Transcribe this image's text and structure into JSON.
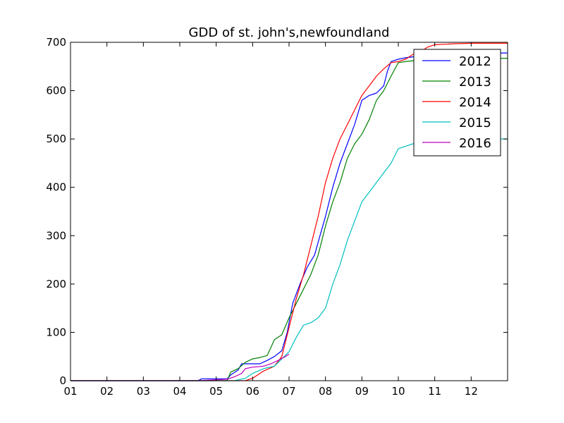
{
  "chart_data": {
    "type": "line",
    "title": "GDD of st. john's,newfoundland",
    "xlabel": "",
    "ylabel": "",
    "x_ticks": [
      "01",
      "02",
      "03",
      "04",
      "05",
      "06",
      "07",
      "08",
      "09",
      "10",
      "11",
      "12"
    ],
    "x_unit": "month",
    "xlim": [
      1,
      13
    ],
    "ylim": [
      0,
      700
    ],
    "y_ticks": [
      0,
      100,
      200,
      300,
      400,
      500,
      600,
      700
    ],
    "grid": false,
    "legend_position": "upper-right",
    "series": [
      {
        "name": "2012",
        "color": "#0000ff",
        "x": [
          1.0,
          4.5,
          4.6,
          5.3,
          5.4,
          5.6,
          5.7,
          6.2,
          6.4,
          6.6,
          6.8,
          6.95,
          7.1,
          7.3,
          7.5,
          7.7,
          7.85,
          8.0,
          8.2,
          8.4,
          8.6,
          8.8,
          9.0,
          9.2,
          9.4,
          9.6,
          9.7,
          9.8,
          10.0,
          10.2,
          10.4,
          10.6,
          11.0,
          12.0,
          13.0
        ],
        "y": [
          0,
          0,
          4,
          4,
          12,
          22,
          35,
          35,
          42,
          50,
          62,
          100,
          160,
          200,
          235,
          260,
          300,
          340,
          400,
          450,
          490,
          530,
          580,
          590,
          595,
          610,
          640,
          660,
          665,
          668,
          670,
          672,
          675,
          677,
          678
        ]
      },
      {
        "name": "2013",
        "color": "#008000",
        "x": [
          1.0,
          5.3,
          5.4,
          5.6,
          5.8,
          6.0,
          6.2,
          6.4,
          6.6,
          6.8,
          7.0,
          7.2,
          7.4,
          7.6,
          7.8,
          8.0,
          8.2,
          8.4,
          8.6,
          8.8,
          9.0,
          9.2,
          9.4,
          9.6,
          9.8,
          10.0,
          10.2,
          10.4,
          10.6,
          11.0,
          12.0,
          13.0
        ],
        "y": [
          0,
          0,
          18,
          25,
          38,
          45,
          48,
          52,
          85,
          95,
          130,
          160,
          190,
          220,
          260,
          320,
          370,
          410,
          460,
          490,
          510,
          540,
          580,
          600,
          630,
          658,
          660,
          662,
          663,
          665,
          666,
          667
        ]
      },
      {
        "name": "2014",
        "color": "#ff0000",
        "x": [
          1.0,
          5.8,
          6.0,
          6.3,
          6.6,
          6.8,
          7.0,
          7.2,
          7.4,
          7.6,
          7.8,
          8.0,
          8.2,
          8.4,
          8.6,
          8.8,
          9.0,
          9.2,
          9.4,
          9.6,
          9.8,
          10.0,
          10.2,
          10.4,
          10.6,
          10.8,
          11.0,
          11.5,
          12.0,
          13.0
        ],
        "y": [
          0,
          0,
          5,
          20,
          30,
          50,
          110,
          170,
          220,
          280,
          340,
          410,
          460,
          500,
          530,
          560,
          590,
          610,
          630,
          645,
          658,
          660,
          665,
          675,
          680,
          690,
          695,
          697,
          698,
          698
        ]
      },
      {
        "name": "2015",
        "color": "#00bfbf",
        "x": [
          1.0,
          5.5,
          5.8,
          6.0,
          6.3,
          6.6,
          6.8,
          7.0,
          7.2,
          7.4,
          7.6,
          7.8,
          8.0,
          8.2,
          8.4,
          8.6,
          8.8,
          9.0,
          9.2,
          9.4,
          9.6,
          9.8,
          10.0,
          10.2,
          10.4,
          10.6,
          11.0,
          12.0,
          13.0
        ],
        "y": [
          0,
          0,
          5,
          15,
          25,
          30,
          45,
          60,
          90,
          115,
          120,
          130,
          150,
          200,
          240,
          290,
          330,
          370,
          390,
          410,
          430,
          450,
          480,
          485,
          490,
          495,
          498,
          500,
          500
        ]
      },
      {
        "name": "2016",
        "color": "#bf00bf",
        "x": [
          1.0,
          4.5,
          5.3,
          5.5,
          5.7,
          5.8,
          6.0,
          6.3,
          6.5,
          6.7,
          6.9,
          7.0
        ],
        "y": [
          0,
          0,
          3,
          8,
          15,
          25,
          28,
          30,
          35,
          42,
          50,
          55
        ]
      }
    ]
  }
}
